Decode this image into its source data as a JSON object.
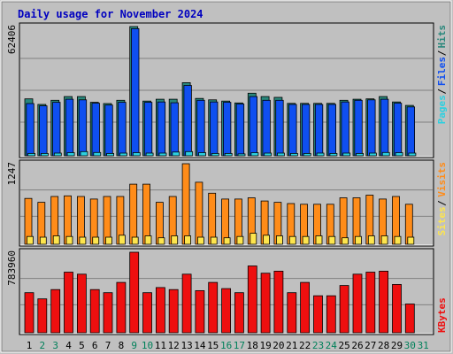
{
  "title": "Daily usage for November 2024",
  "colors": {
    "background": "#c0c0c0",
    "title": "#0000c0",
    "hits": "#29877b",
    "files": "#0f4ff0",
    "pages": "#2cd0e0",
    "visits": "#ff8c19",
    "sites": "#fde54e",
    "kbytes": "#ee0f0f",
    "weekend": "#00805a"
  },
  "chart_data": [
    {
      "type": "bar",
      "title": "Daily usage for November 2024",
      "ymax_label": "62406",
      "ylim": [
        0,
        62406
      ],
      "legend": [
        "Pages",
        "Files",
        "Hits"
      ],
      "categories": [
        "1",
        "2",
        "3",
        "4",
        "5",
        "6",
        "7",
        "8",
        "9",
        "10",
        "11",
        "12",
        "13",
        "14",
        "15",
        "16",
        "17",
        "18",
        "19",
        "20",
        "21",
        "22",
        "23",
        "24",
        "25",
        "26",
        "27",
        "28",
        "29",
        "30",
        "31"
      ],
      "series": [
        {
          "name": "Hits",
          "values": [
            27500,
            24800,
            26800,
            28600,
            28600,
            25800,
            25200,
            26800,
            62406,
            26400,
            27300,
            27300,
            35300,
            27700,
            27000,
            26400,
            25500,
            30200,
            28600,
            28200,
            25300,
            25300,
            25300,
            25300,
            26800,
            27300,
            27500,
            28600,
            26000,
            24300,
            0
          ]
        },
        {
          "name": "Files",
          "values": [
            25200,
            24100,
            25800,
            27300,
            27000,
            25400,
            24500,
            25800,
            61400,
            25800,
            26000,
            25600,
            34000,
            26800,
            26000,
            25800,
            25000,
            28600,
            26800,
            26800,
            24800,
            24800,
            24800,
            24800,
            26000,
            26800,
            27000,
            27300,
            25400,
            23600,
            0
          ]
        },
        {
          "name": "Pages",
          "values": [
            1100,
            1100,
            1300,
            1500,
            2000,
            1600,
            1100,
            1300,
            1500,
            1300,
            1300,
            1800,
            2000,
            1500,
            1100,
            1100,
            900,
            1500,
            1300,
            1300,
            1100,
            1100,
            1300,
            1100,
            1300,
            1100,
            1300,
            1600,
            1500,
            1300,
            0
          ]
        }
      ]
    },
    {
      "type": "bar",
      "ymax_label": "1247",
      "ylim": [
        0,
        1247
      ],
      "legend": [
        "Sites",
        "Visits"
      ],
      "categories": [
        "1",
        "2",
        "3",
        "4",
        "5",
        "6",
        "7",
        "8",
        "9",
        "10",
        "11",
        "12",
        "13",
        "14",
        "15",
        "16",
        "17",
        "18",
        "19",
        "20",
        "21",
        "22",
        "23",
        "24",
        "25",
        "26",
        "27",
        "28",
        "29",
        "30",
        "31"
      ],
      "series": [
        {
          "name": "Visits",
          "values": [
            710,
            650,
            740,
            750,
            740,
            700,
            740,
            740,
            930,
            930,
            650,
            740,
            1247,
            960,
            790,
            700,
            700,
            720,
            670,
            650,
            630,
            620,
            620,
            620,
            720,
            720,
            760,
            700,
            740,
            620,
            0
          ]
        },
        {
          "name": "Sites",
          "values": [
            120,
            110,
            130,
            120,
            110,
            110,
            110,
            140,
            110,
            130,
            100,
            130,
            130,
            110,
            110,
            100,
            120,
            170,
            140,
            130,
            120,
            120,
            130,
            120,
            100,
            120,
            130,
            130,
            120,
            110,
            0
          ]
        }
      ]
    },
    {
      "type": "bar",
      "ymax_label": "783960",
      "ylim": [
        0,
        783960
      ],
      "legend": [
        "KBytes"
      ],
      "categories": [
        "1",
        "2",
        "3",
        "4",
        "5",
        "6",
        "7",
        "8",
        "9",
        "10",
        "11",
        "12",
        "13",
        "14",
        "15",
        "16",
        "17",
        "18",
        "19",
        "20",
        "21",
        "22",
        "23",
        "24",
        "25",
        "26",
        "27",
        "28",
        "29",
        "30",
        "31"
      ],
      "series": [
        {
          "name": "KBytes",
          "values": [
            390000,
            330000,
            420000,
            590000,
            570000,
            420000,
            390000,
            490000,
            783960,
            390000,
            440000,
            420000,
            570000,
            410000,
            490000,
            430000,
            390000,
            650000,
            580000,
            600000,
            390000,
            490000,
            360000,
            360000,
            460000,
            570000,
            590000,
            600000,
            470000,
            280000,
            0
          ]
        }
      ]
    }
  ],
  "weekend_days": [
    2,
    3,
    9,
    10,
    16,
    17,
    23,
    24,
    30,
    31
  ]
}
